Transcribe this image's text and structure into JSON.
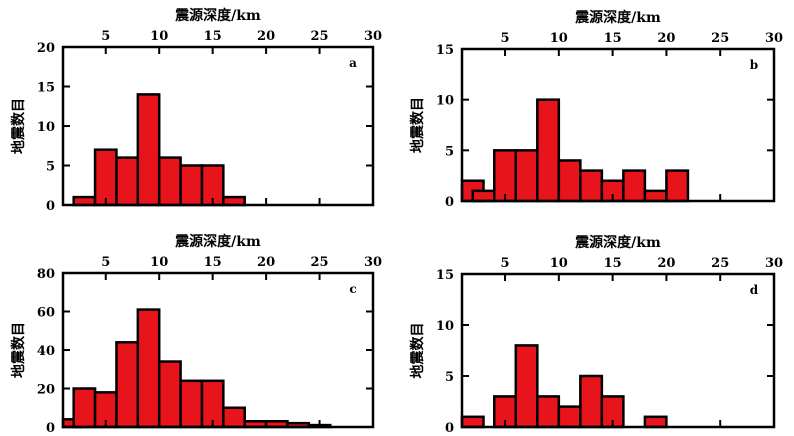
{
  "chart_data": [
    {
      "type": "bar",
      "panel": "a",
      "xlabel": "震源深度/km",
      "ylabel": "地震数目",
      "xlim": [
        1,
        30
      ],
      "ylim": [
        0,
        20
      ],
      "xticks": [
        5,
        10,
        15,
        20,
        25,
        30
      ],
      "yticks": [
        0,
        5,
        10,
        15,
        20
      ],
      "bin_width": 2,
      "bins": [
        {
          "x0": 2,
          "value": 1
        },
        {
          "x0": 4,
          "value": 7
        },
        {
          "x0": 6,
          "value": 6
        },
        {
          "x0": 8,
          "value": 14
        },
        {
          "x0": 10,
          "value": 6
        },
        {
          "x0": 12,
          "value": 5
        },
        {
          "x0": 14,
          "value": 5
        },
        {
          "x0": 16,
          "value": 1
        }
      ]
    },
    {
      "type": "bar",
      "panel": "b",
      "xlabel": "震源深度/km",
      "ylabel": "地震数目",
      "xlim": [
        1,
        30
      ],
      "ylim": [
        0,
        15
      ],
      "xticks": [
        5,
        10,
        15,
        20,
        25,
        30
      ],
      "yticks": [
        0,
        5,
        10,
        15
      ],
      "bin_width": 2,
      "bins": [
        {
          "x0": 1,
          "value": 2
        },
        {
          "x0": 2,
          "value": 1
        },
        {
          "x0": 4,
          "value": 5
        },
        {
          "x0": 6,
          "value": 5
        },
        {
          "x0": 8,
          "value": 10
        },
        {
          "x0": 10,
          "value": 4
        },
        {
          "x0": 12,
          "value": 3
        },
        {
          "x0": 14,
          "value": 2
        },
        {
          "x0": 16,
          "value": 3
        },
        {
          "x0": 18,
          "value": 1
        },
        {
          "x0": 20,
          "value": 3
        }
      ]
    },
    {
      "type": "bar",
      "panel": "c",
      "xlabel": "震源深度/km",
      "ylabel": "地震数目",
      "xlim": [
        1,
        30
      ],
      "ylim": [
        0,
        80
      ],
      "xticks": [
        5,
        10,
        15,
        20,
        25,
        30
      ],
      "yticks": [
        0,
        20,
        40,
        60,
        80
      ],
      "bin_width": 2,
      "bins": [
        {
          "x0": 1,
          "value": 4
        },
        {
          "x0": 2,
          "value": 20
        },
        {
          "x0": 4,
          "value": 18
        },
        {
          "x0": 6,
          "value": 44
        },
        {
          "x0": 8,
          "value": 61
        },
        {
          "x0": 10,
          "value": 34
        },
        {
          "x0": 12,
          "value": 24
        },
        {
          "x0": 14,
          "value": 24
        },
        {
          "x0": 16,
          "value": 10
        },
        {
          "x0": 18,
          "value": 3
        },
        {
          "x0": 20,
          "value": 3
        },
        {
          "x0": 22,
          "value": 2
        },
        {
          "x0": 24,
          "value": 1
        }
      ]
    },
    {
      "type": "bar",
      "panel": "d",
      "xlabel": "震源深度/km",
      "ylabel": "地震数目",
      "xlim": [
        1,
        30
      ],
      "ylim": [
        0,
        15
      ],
      "xticks": [
        5,
        10,
        15,
        20,
        25,
        30
      ],
      "yticks": [
        0,
        5,
        10,
        15
      ],
      "bin_width": 2,
      "bins": [
        {
          "x0": 1,
          "value": 1
        },
        {
          "x0": 4,
          "value": 3
        },
        {
          "x0": 6,
          "value": 8
        },
        {
          "x0": 8,
          "value": 3
        },
        {
          "x0": 10,
          "value": 2
        },
        {
          "x0": 12,
          "value": 5
        },
        {
          "x0": 14,
          "value": 3
        },
        {
          "x0": 18,
          "value": 1
        }
      ]
    }
  ],
  "colors": {
    "bar_fill": "#e8141c",
    "bar_stroke": "#000000",
    "axis": "#000000"
  }
}
